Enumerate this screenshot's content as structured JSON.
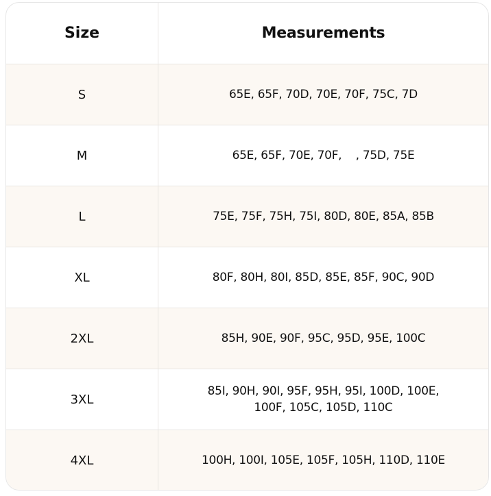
{
  "header": {
    "size": "Size",
    "measurements": "Measurements"
  },
  "rows": [
    {
      "size": "S",
      "measurements": "65E, 65F, 70D, 70E, 70F, 75C, 7D"
    },
    {
      "size": "M",
      "measurements": "65E, 65F, 70E, 70F,    , 75D, 75E"
    },
    {
      "size": "L",
      "measurements": "75E, 75F, 75H, 75I, 80D, 80E, 85A, 85B"
    },
    {
      "size": "XL",
      "measurements": "80F, 80H, 80I, 85D, 85E, 85F, 90C, 90D"
    },
    {
      "size": "2XL",
      "measurements": "85H, 90E, 90F, 95C, 95D, 95E, 100C"
    },
    {
      "size": "3XL",
      "measurements": "85I, 90H, 90I, 95F, 95H, 95I, 100D, 100E, 100F, 105C, 105D, 110C"
    },
    {
      "size": "4XL",
      "measurements": "100H, 100I, 105E, 105F, 105H, 110D, 110E"
    }
  ]
}
